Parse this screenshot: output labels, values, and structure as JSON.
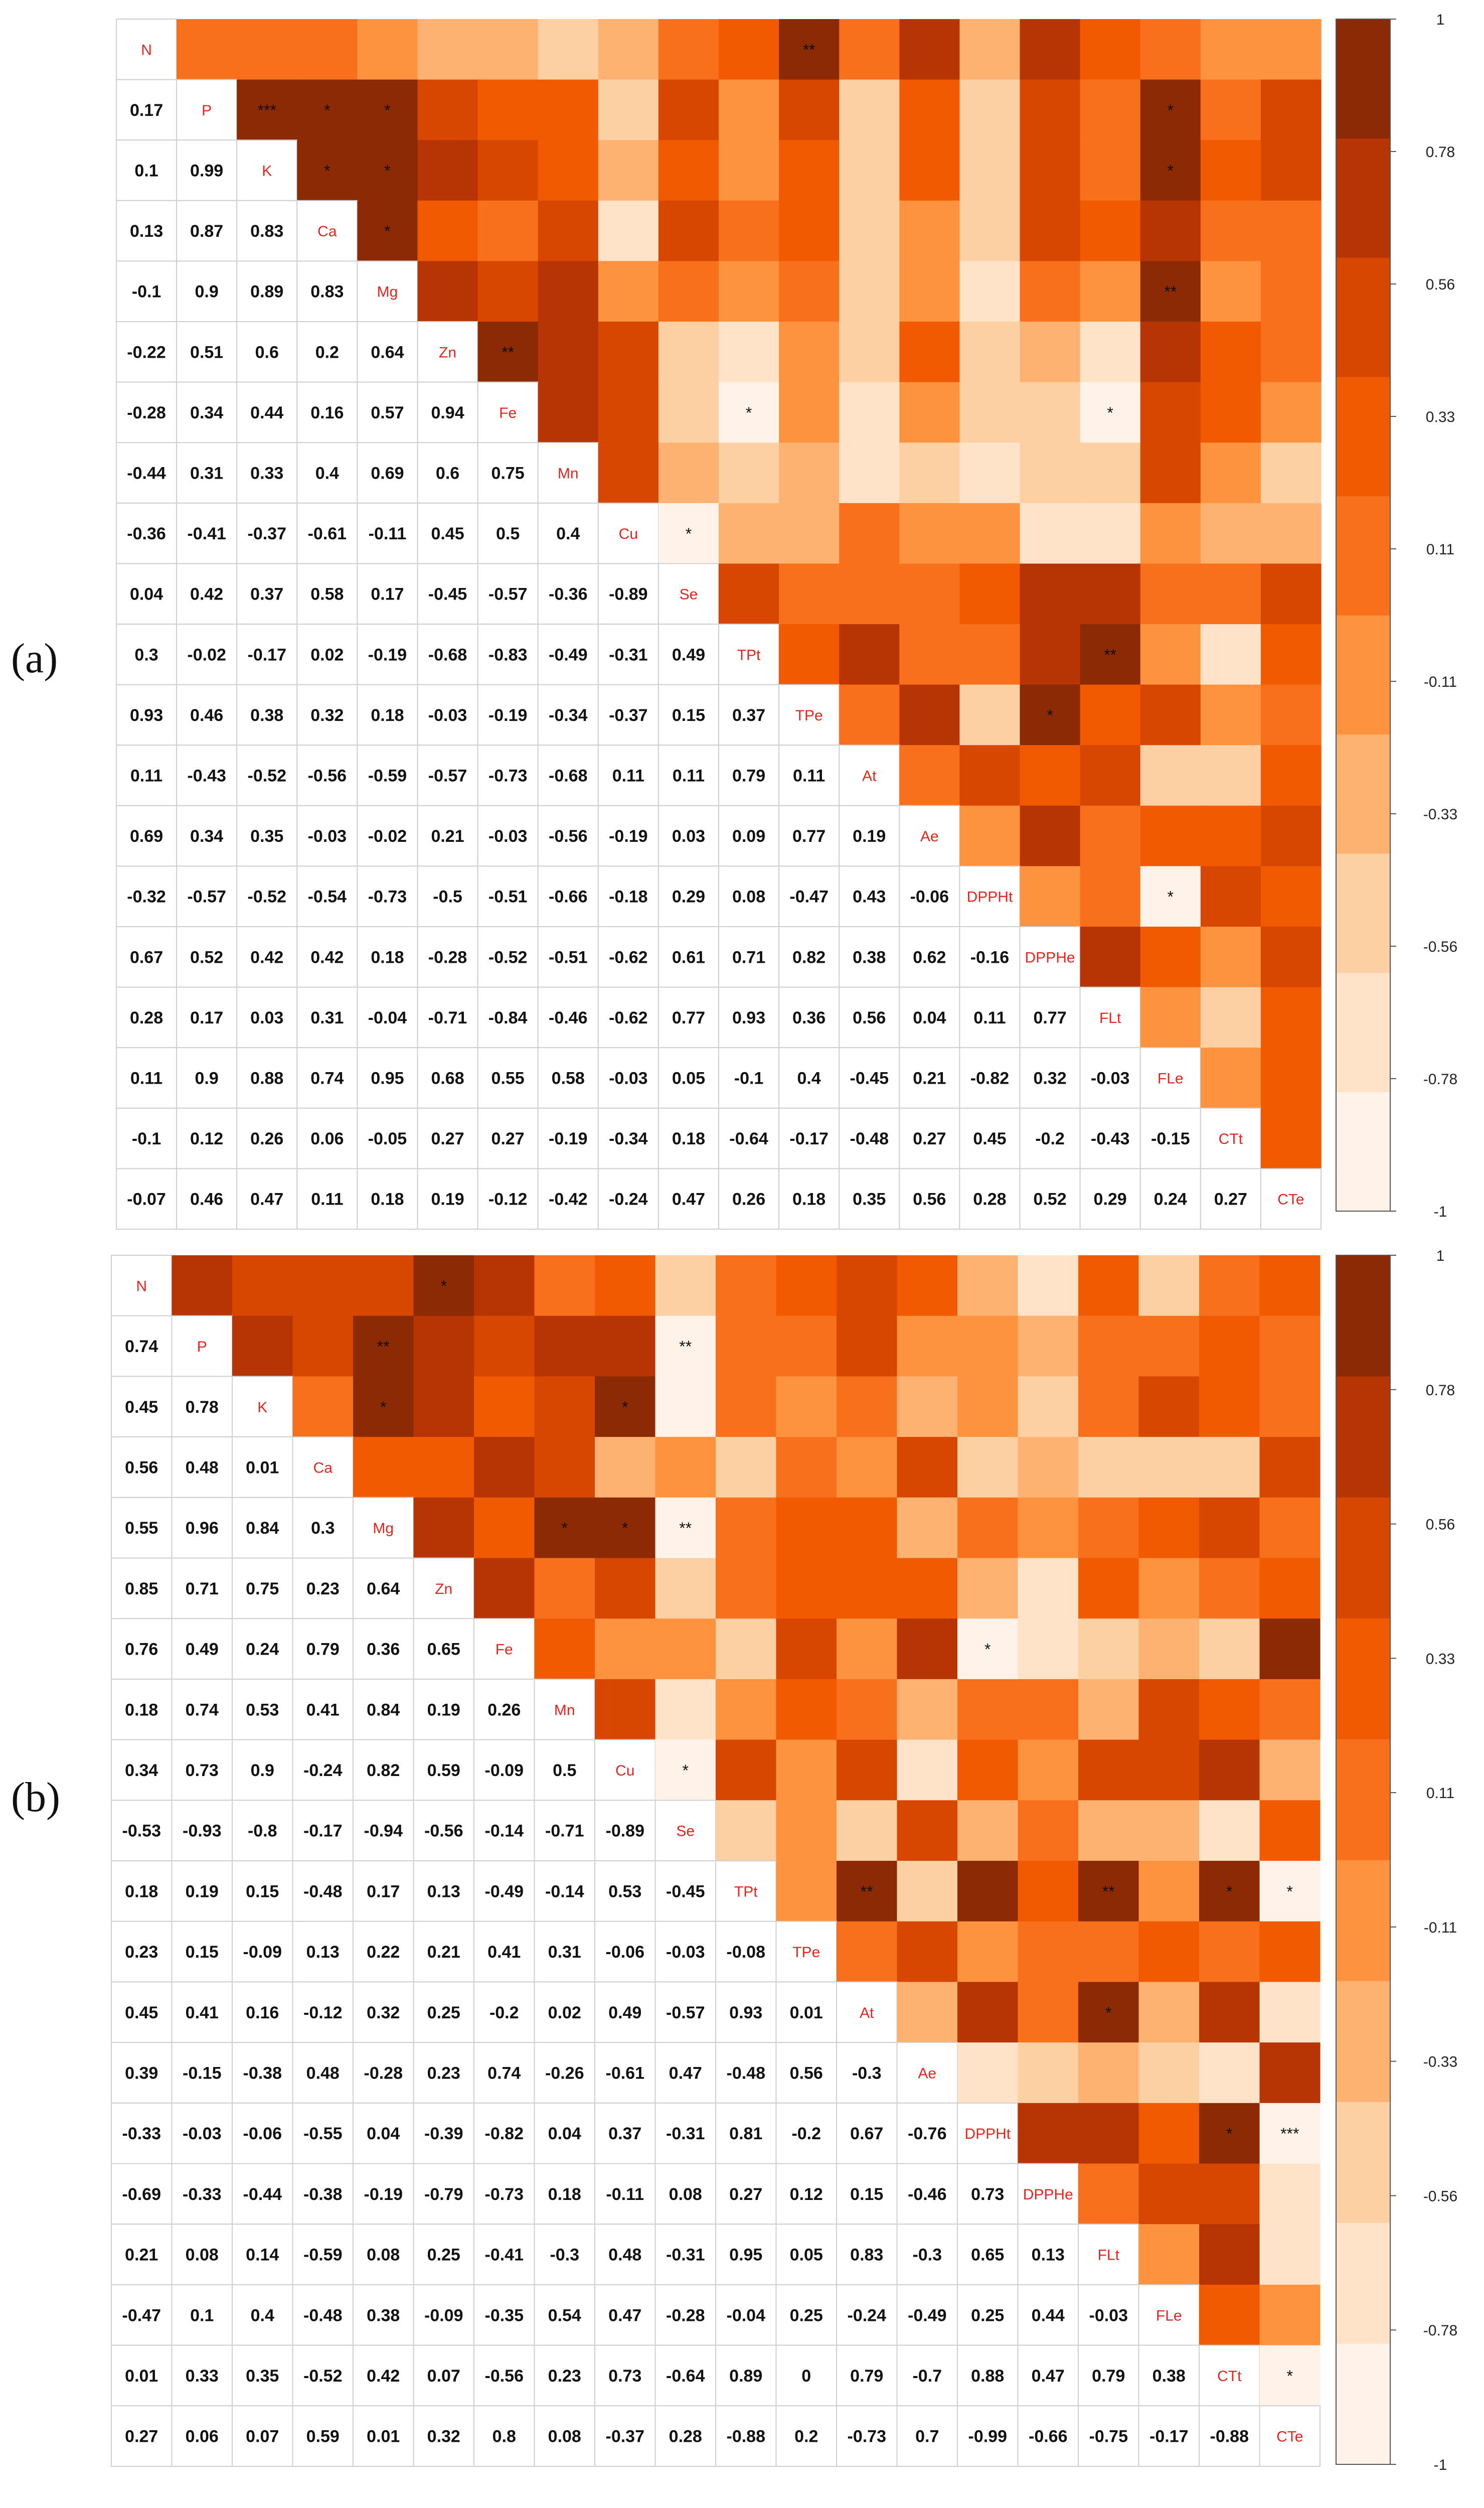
{
  "figure": {
    "panel_labels": [
      "(a)",
      "(b)"
    ]
  },
  "colors": {
    "scale": [
      "#fff3e9",
      "#fee3c9",
      "#fdd0a3",
      "#fdb271",
      "#fd923f",
      "#f8701b",
      "#f15a00",
      "#d84701",
      "#b73404",
      "#8b2a05"
    ],
    "diagonal_label": "#e8221c",
    "grid_line": "#cfcfcf"
  },
  "chart_data": [
    {
      "type": "heatmap",
      "panel": "(a)",
      "variables": [
        "N",
        "P",
        "K",
        "Ca",
        "Mg",
        "Zn",
        "Fe",
        "Mn",
        "Cu",
        "Se",
        "TPt",
        "TPe",
        "At",
        "Ae",
        "DPPHt",
        "DPPHe",
        "FLt",
        "FLe",
        "CTt",
        "CTe"
      ],
      "lower_triangle": [
        [],
        [
          0.17
        ],
        [
          0.1,
          0.99
        ],
        [
          0.13,
          0.87,
          0.83
        ],
        [
          -0.1,
          0.9,
          0.89,
          0.83
        ],
        [
          -0.22,
          0.51,
          0.6,
          0.2,
          0.64
        ],
        [
          -0.28,
          0.34,
          0.44,
          0.16,
          0.57,
          0.94
        ],
        [
          -0.44,
          0.31,
          0.33,
          0.4,
          0.69,
          0.6,
          0.75
        ],
        [
          -0.36,
          -0.41,
          -0.37,
          -0.61,
          -0.11,
          0.45,
          0.5,
          0.4
        ],
        [
          0.04,
          0.42,
          0.37,
          0.58,
          0.17,
          -0.45,
          -0.57,
          -0.36,
          -0.89
        ],
        [
          0.3,
          -0.02,
          -0.17,
          0.02,
          -0.19,
          -0.68,
          -0.83,
          -0.49,
          -0.31,
          0.49
        ],
        [
          0.93,
          0.46,
          0.38,
          0.32,
          0.18,
          -0.03,
          -0.19,
          -0.34,
          -0.37,
          0.15,
          0.37
        ],
        [
          0.11,
          -0.43,
          -0.52,
          -0.56,
          -0.59,
          -0.57,
          -0.73,
          -0.68,
          0.11,
          0.11,
          0.79,
          0.11
        ],
        [
          0.69,
          0.34,
          0.35,
          -0.03,
          -0.02,
          0.21,
          -0.03,
          -0.56,
          -0.19,
          0.03,
          0.09,
          0.77,
          0.19
        ],
        [
          -0.32,
          -0.57,
          -0.52,
          -0.54,
          -0.73,
          -0.5,
          -0.51,
          -0.66,
          -0.18,
          0.29,
          0.08,
          -0.47,
          0.43,
          -0.06
        ],
        [
          0.67,
          0.52,
          0.42,
          0.42,
          0.18,
          -0.28,
          -0.52,
          -0.51,
          -0.62,
          0.61,
          0.71,
          0.82,
          0.38,
          0.62,
          -0.16
        ],
        [
          0.28,
          0.17,
          0.03,
          0.31,
          -0.04,
          -0.71,
          -0.84,
          -0.46,
          -0.62,
          0.77,
          0.93,
          0.36,
          0.56,
          0.04,
          0.11,
          0.77
        ],
        [
          0.11,
          0.9,
          0.88,
          0.74,
          0.95,
          0.68,
          0.55,
          0.58,
          -0.03,
          0.05,
          -0.1,
          0.4,
          -0.45,
          0.21,
          -0.82,
          0.32,
          -0.03
        ],
        [
          -0.1,
          0.12,
          0.26,
          0.06,
          -0.05,
          0.27,
          0.27,
          -0.19,
          -0.34,
          0.18,
          -0.64,
          -0.17,
          -0.48,
          0.27,
          0.45,
          -0.2,
          -0.43,
          -0.15
        ],
        [
          -0.07,
          0.46,
          0.47,
          0.11,
          0.18,
          0.19,
          -0.12,
          -0.42,
          -0.24,
          0.47,
          0.26,
          0.18,
          0.35,
          0.56,
          0.28,
          0.52,
          0.29,
          0.24,
          0.27
        ]
      ],
      "significance": [
        {
          "row": 0,
          "col": 11,
          "mark": "**"
        },
        {
          "row": 1,
          "col": 2,
          "mark": "***"
        },
        {
          "row": 1,
          "col": 3,
          "mark": "*"
        },
        {
          "row": 1,
          "col": 4,
          "mark": "*"
        },
        {
          "row": 1,
          "col": 17,
          "mark": "*"
        },
        {
          "row": 2,
          "col": 3,
          "mark": "*"
        },
        {
          "row": 2,
          "col": 4,
          "mark": "*"
        },
        {
          "row": 2,
          "col": 17,
          "mark": "*"
        },
        {
          "row": 3,
          "col": 4,
          "mark": "*"
        },
        {
          "row": 4,
          "col": 17,
          "mark": "**"
        },
        {
          "row": 5,
          "col": 6,
          "mark": "**"
        },
        {
          "row": 6,
          "col": 10,
          "mark": "*"
        },
        {
          "row": 6,
          "col": 16,
          "mark": "*"
        },
        {
          "row": 8,
          "col": 9,
          "mark": "*"
        },
        {
          "row": 10,
          "col": 16,
          "mark": "**"
        },
        {
          "row": 11,
          "col": 15,
          "mark": "*"
        },
        {
          "row": 14,
          "col": 17,
          "mark": "*"
        }
      ],
      "colorbar": {
        "ticks": [
          "1",
          "0.78",
          "0.56",
          "0.33",
          "0.11",
          "-0.11",
          "-0.33",
          "-0.56",
          "-0.78",
          "-1"
        ],
        "range": [
          -1,
          1
        ]
      }
    },
    {
      "type": "heatmap",
      "panel": "(b)",
      "variables": [
        "N",
        "P",
        "K",
        "Ca",
        "Mg",
        "Zn",
        "Fe",
        "Mn",
        "Cu",
        "Se",
        "TPt",
        "TPe",
        "At",
        "Ae",
        "DPPHt",
        "DPPHe",
        "FLt",
        "FLe",
        "CTt",
        "CTe"
      ],
      "lower_triangle": [
        [],
        [
          0.74
        ],
        [
          0.45,
          0.78
        ],
        [
          0.56,
          0.48,
          0.01
        ],
        [
          0.55,
          0.96,
          0.84,
          0.3
        ],
        [
          0.85,
          0.71,
          0.75,
          0.23,
          0.64
        ],
        [
          0.76,
          0.49,
          0.24,
          0.79,
          0.36,
          0.65
        ],
        [
          0.18,
          0.74,
          0.53,
          0.41,
          0.84,
          0.19,
          0.26
        ],
        [
          0.34,
          0.73,
          0.9,
          -0.24,
          0.82,
          0.59,
          -0.09,
          0.5
        ],
        [
          -0.53,
          -0.93,
          -0.8,
          -0.17,
          -0.94,
          -0.56,
          -0.14,
          -0.71,
          -0.89
        ],
        [
          0.18,
          0.19,
          0.15,
          -0.48,
          0.17,
          0.13,
          -0.49,
          -0.14,
          0.53,
          -0.45
        ],
        [
          0.23,
          0.15,
          -0.09,
          0.13,
          0.22,
          0.21,
          0.41,
          0.31,
          -0.06,
          -0.03,
          -0.08
        ],
        [
          0.45,
          0.41,
          0.16,
          -0.12,
          0.32,
          0.25,
          -0.2,
          0.02,
          0.49,
          -0.57,
          0.93,
          0.01
        ],
        [
          0.39,
          -0.15,
          -0.38,
          0.48,
          -0.28,
          0.23,
          0.74,
          -0.26,
          -0.61,
          0.47,
          -0.48,
          0.56,
          -0.3
        ],
        [
          -0.33,
          -0.03,
          -0.06,
          -0.55,
          0.04,
          -0.39,
          -0.82,
          0.04,
          0.37,
          -0.31,
          0.81,
          -0.2,
          0.67,
          -0.76
        ],
        [
          -0.69,
          -0.33,
          -0.44,
          -0.38,
          -0.19,
          -0.79,
          -0.73,
          0.18,
          -0.11,
          0.08,
          0.27,
          0.12,
          0.15,
          -0.46,
          0.73
        ],
        [
          0.21,
          0.08,
          0.14,
          -0.59,
          0.08,
          0.25,
          -0.41,
          -0.3,
          0.48,
          -0.31,
          0.95,
          0.05,
          0.83,
          -0.3,
          0.65,
          0.13
        ],
        [
          -0.47,
          0.1,
          0.4,
          -0.48,
          0.38,
          -0.09,
          -0.35,
          0.54,
          0.47,
          -0.28,
          -0.04,
          0.25,
          -0.24,
          -0.49,
          0.25,
          0.44,
          -0.03
        ],
        [
          0.01,
          0.33,
          0.35,
          -0.52,
          0.42,
          0.07,
          -0.56,
          0.23,
          0.73,
          -0.64,
          0.89,
          0,
          0.79,
          -0.7,
          0.88,
          0.47,
          0.79,
          0.38
        ],
        [
          0.27,
          0.06,
          0.07,
          0.59,
          0.01,
          0.32,
          0.8,
          0.08,
          -0.37,
          0.28,
          -0.88,
          0.2,
          -0.73,
          0.7,
          -0.99,
          -0.66,
          -0.75,
          -0.17,
          -0.88
        ]
      ],
      "significance": [
        {
          "row": 0,
          "col": 5,
          "mark": "*"
        },
        {
          "row": 1,
          "col": 4,
          "mark": "**"
        },
        {
          "row": 1,
          "col": 9,
          "mark": "**"
        },
        {
          "row": 2,
          "col": 4,
          "mark": "*"
        },
        {
          "row": 2,
          "col": 8,
          "mark": "*"
        },
        {
          "row": 4,
          "col": 7,
          "mark": "*"
        },
        {
          "row": 4,
          "col": 8,
          "mark": "*"
        },
        {
          "row": 4,
          "col": 9,
          "mark": "**"
        },
        {
          "row": 6,
          "col": 14,
          "mark": "*"
        },
        {
          "row": 8,
          "col": 9,
          "mark": "*"
        },
        {
          "row": 10,
          "col": 12,
          "mark": "**"
        },
        {
          "row": 10,
          "col": 16,
          "mark": "**"
        },
        {
          "row": 10,
          "col": 18,
          "mark": "*"
        },
        {
          "row": 10,
          "col": 19,
          "mark": "*"
        },
        {
          "row": 12,
          "col": 16,
          "mark": "*"
        },
        {
          "row": 14,
          "col": 18,
          "mark": "*"
        },
        {
          "row": 14,
          "col": 19,
          "mark": "***"
        },
        {
          "row": 18,
          "col": 19,
          "mark": "*"
        }
      ],
      "colorbar": {
        "ticks": [
          "1",
          "0.78",
          "0.56",
          "0.33",
          "0.11",
          "-0.11",
          "-0.33",
          "-0.56",
          "-0.78",
          "-1"
        ],
        "range": [
          -1,
          1
        ]
      }
    }
  ]
}
